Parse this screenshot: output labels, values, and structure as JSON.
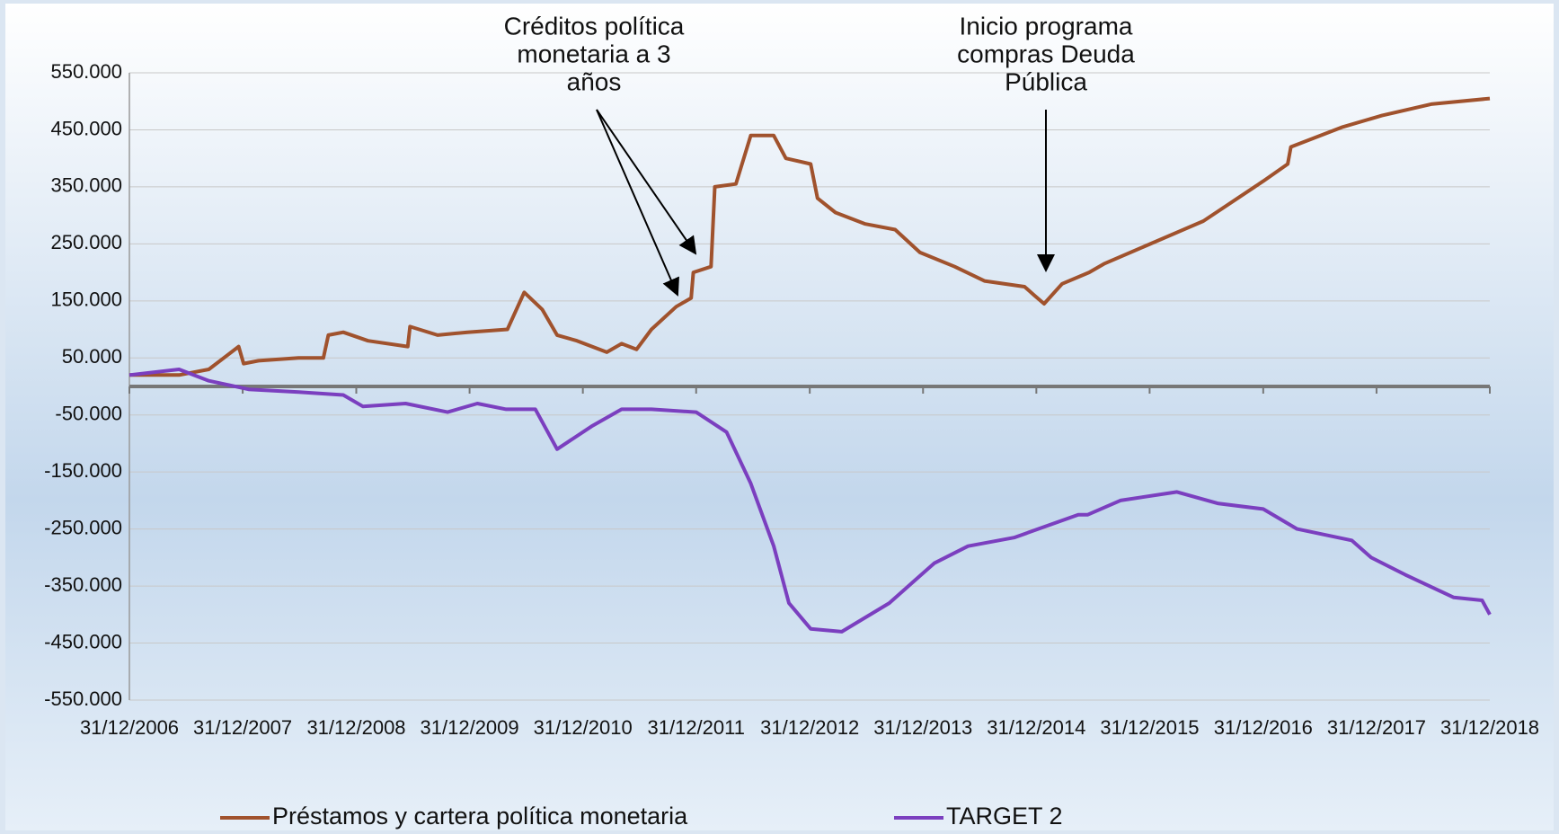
{
  "chart_data": {
    "type": "line",
    "annotations": [
      {
        "lines": [
          "Créditos política",
          "monetaria a 3",
          "años"
        ]
      },
      {
        "lines": [
          "Inicio programa",
          "compras Deuda",
          "Pública"
        ]
      }
    ],
    "xlim": [
      "2006-12-31",
      "2018-12-31"
    ],
    "xticks": [
      {
        "value": "2006-12-31",
        "label": "31/12/2006"
      },
      {
        "value": "2007-12-31",
        "label": "31/12/2007"
      },
      {
        "value": "2008-12-31",
        "label": "31/12/2008"
      },
      {
        "value": "2009-12-31",
        "label": "31/12/2009"
      },
      {
        "value": "2010-12-31",
        "label": "31/12/2010"
      },
      {
        "value": "2011-12-31",
        "label": "31/12/2011"
      },
      {
        "value": "2012-12-31",
        "label": "31/12/2012"
      },
      {
        "value": "2013-12-31",
        "label": "31/12/2013"
      },
      {
        "value": "2014-12-31",
        "label": "31/12/2014"
      },
      {
        "value": "2015-12-31",
        "label": "31/12/2015"
      },
      {
        "value": "2016-12-31",
        "label": "31/12/2016"
      },
      {
        "value": "2017-12-31",
        "label": "31/12/2017"
      },
      {
        "value": "2018-12-31",
        "label": "31/12/2018"
      }
    ],
    "ylim": [
      -550000,
      550000
    ],
    "yticks": [
      {
        "value": 550000,
        "label": "550.000"
      },
      {
        "value": 450000,
        "label": "450.000"
      },
      {
        "value": 350000,
        "label": "350.000"
      },
      {
        "value": 250000,
        "label": "250.000"
      },
      {
        "value": 150000,
        "label": "150.000"
      },
      {
        "value": 50000,
        "label": "50.000"
      },
      {
        "value": -50000,
        "label": "-50.000"
      },
      {
        "value": -150000,
        "label": "-150.000"
      },
      {
        "value": -250000,
        "label": "-250.000"
      },
      {
        "value": -350000,
        "label": "-350.000"
      },
      {
        "value": -450000,
        "label": "-450.000"
      },
      {
        "value": -550000,
        "label": "-550.000"
      }
    ],
    "grid": true,
    "series": [
      {
        "name": "Préstamos y cartera política monetaria",
        "color": "#a0522d",
        "x": [
          "2006-12-31",
          "2007-06-09",
          "2007-09-13",
          "2007-12-18",
          "2008-01-03",
          "2008-02-20",
          "2008-06-28",
          "2008-09-16",
          "2008-10-02",
          "2008-11-19",
          "2009-02-07",
          "2009-06-15",
          "2009-06-22",
          "2009-09-19",
          "2009-12-24",
          "2010-05-02",
          "2010-06-25",
          "2010-08-22",
          "2010-10-09",
          "2010-12-12",
          "2011-03-18",
          "2011-05-05",
          "2011-06-22",
          "2011-08-09",
          "2011-10-28",
          "2011-12-15",
          "2011-12-22",
          "2012-02-17",
          "2012-02-29",
          "2012-05-07",
          "2012-06-24",
          "2012-09-06",
          "2012-10-15",
          "2013-01-03",
          "2013-01-25",
          "2013-03-24",
          "2013-06-28",
          "2013-10-02",
          "2013-12-21",
          "2014-04-12",
          "2014-07-17",
          "2014-11-23",
          "2014-12-24",
          "2015-01-25",
          "2015-03-24",
          "2015-06-19",
          "2015-08-06",
          "2015-12-12",
          "2016-06-21",
          "2016-12-31",
          "2017-03-20",
          "2017-03-30",
          "2017-09-13",
          "2018-01-17",
          "2018-06-25",
          "2018-12-31"
        ],
        "values": [
          20000,
          20000,
          30000,
          70000,
          40000,
          45000,
          50000,
          50000,
          90000,
          95000,
          80000,
          70000,
          105000,
          90000,
          95000,
          100000,
          165000,
          135000,
          90000,
          80000,
          60000,
          75000,
          65000,
          100000,
          140000,
          155000,
          200000,
          210000,
          350000,
          355000,
          440000,
          440000,
          400000,
          390000,
          330000,
          305000,
          285000,
          275000,
          235000,
          210000,
          185000,
          175000,
          160000,
          145000,
          180000,
          200000,
          215000,
          245000,
          290000,
          360000,
          390000,
          420000,
          455000,
          475000,
          495000,
          505000
        ]
      },
      {
        "name": "TARGET 2",
        "color": "#7b3fbf",
        "x": [
          "2006-12-31",
          "2007-06-09",
          "2007-09-13",
          "2008-01-19",
          "2008-06-28",
          "2008-11-19",
          "2009-01-21",
          "2009-06-08",
          "2009-10-21",
          "2010-01-25",
          "2010-04-28",
          "2010-07-31",
          "2010-10-09",
          "2011-01-28",
          "2011-05-05",
          "2011-08-09",
          "2011-12-31",
          "2012-04-07",
          "2012-06-24",
          "2012-09-06",
          "2012-10-25",
          "2013-01-03",
          "2013-04-13",
          "2013-09-13",
          "2014-02-05",
          "2014-05-25",
          "2014-10-20",
          "2015-05-15",
          "2015-06-14",
          "2015-09-28",
          "2016-03-28",
          "2016-08-06",
          "2016-12-31",
          "2017-04-19",
          "2017-10-12",
          "2017-12-14",
          "2018-04-02",
          "2018-09-06",
          "2018-12-06",
          "2018-12-31"
        ],
        "values": [
          20000,
          30000,
          10000,
          -5000,
          -10000,
          -15000,
          -35000,
          -30000,
          -45000,
          -30000,
          -40000,
          -40000,
          -110000,
          -70000,
          -40000,
          -40000,
          -45000,
          -80000,
          -170000,
          -280000,
          -380000,
          -425000,
          -430000,
          -380000,
          -310000,
          -280000,
          -265000,
          -225000,
          -225000,
          -200000,
          -185000,
          -205000,
          -215000,
          -250000,
          -270000,
          -300000,
          -330000,
          -370000,
          -375000,
          -400000
        ]
      }
    ],
    "legend": "bottom"
  }
}
